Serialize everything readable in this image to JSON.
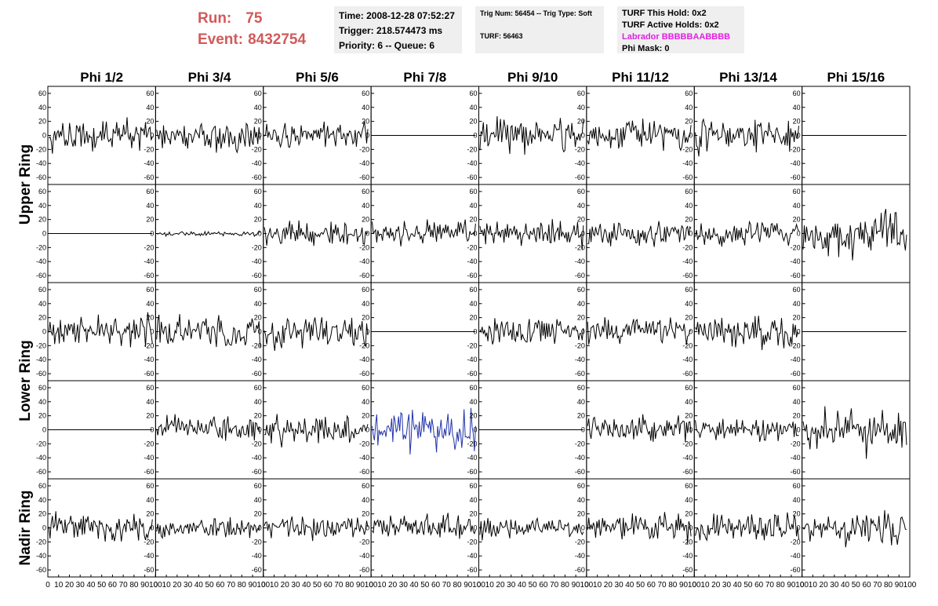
{
  "header": {
    "run_label": "Run:",
    "run_value": "75",
    "event_label": "Event:",
    "event_value": "8432754",
    "time": "Time: 2008-12-28 07:52:27",
    "trigger": "Trigger: 218.574473 ms",
    "priority": "Priority: 6 -- Queue: 6",
    "trig": "Trig Num: 56454 -- Trig Type: Soft",
    "turf": "TURF: 56463",
    "turf_hold": "TURF This Hold: 0x2",
    "turf_active": "TURF Active Holds: 0x2",
    "labrador": "Labrador BBBBBAABBBB",
    "phi_mask": "Phi Mask: 0",
    "labrador_color": "#e020e0",
    "run_color": "#d15a5a"
  },
  "chart_data": {
    "type": "line",
    "columns": [
      "Phi 1/2",
      "Phi 3/4",
      "Phi 5/6",
      "Phi 7/8",
      "Phi 9/10",
      "Phi 11/12",
      "Phi 13/14",
      "Phi 15/16"
    ],
    "row_labels": [
      "Upper Ring",
      "Lower Ring",
      "Nadir Ring"
    ],
    "y_ticks": [
      60,
      40,
      20,
      0,
      -20,
      -40,
      -60
    ],
    "x_ticks": [
      0,
      10,
      20,
      30,
      40,
      50,
      60,
      70,
      80,
      90,
      100
    ],
    "ylim": [
      -70,
      70
    ],
    "xlim": [
      0,
      100
    ],
    "samples": 90,
    "panels": [
      [
        {
          "amp": 14,
          "seed": 11
        },
        {
          "amp": 13,
          "seed": 12
        },
        {
          "amp": 12,
          "seed": 13
        },
        {
          "amp": 0,
          "seed": 14
        },
        {
          "amp": 14,
          "seed": 15
        },
        {
          "amp": 12,
          "seed": 16
        },
        {
          "amp": 16,
          "seed": 17
        },
        {
          "amp": 0,
          "seed": 18
        }
      ],
      [
        {
          "amp": 0,
          "seed": 21
        },
        {
          "amp": 2,
          "seed": 22
        },
        {
          "amp": 11,
          "seed": 23
        },
        {
          "amp": 10,
          "seed": 24
        },
        {
          "amp": 11,
          "seed": 25
        },
        {
          "amp": 11,
          "seed": 26
        },
        {
          "amp": 11,
          "seed": 27
        },
        {
          "amp": 20,
          "seed": 28
        }
      ],
      [
        {
          "amp": 14,
          "seed": 31
        },
        {
          "amp": 14,
          "seed": 32
        },
        {
          "amp": 14,
          "seed": 33
        },
        {
          "amp": 0,
          "seed": 34
        },
        {
          "amp": 10,
          "seed": 35
        },
        {
          "amp": 12,
          "seed": 36
        },
        {
          "amp": 13,
          "seed": 37
        },
        {
          "amp": 0,
          "seed": 38
        }
      ],
      [
        {
          "amp": 0,
          "seed": 41
        },
        {
          "amp": 11,
          "seed": 42
        },
        {
          "amp": 12,
          "seed": 43
        },
        {
          "amp": 18,
          "seed": 44,
          "color": "#2233aa"
        },
        {
          "amp": 0,
          "seed": 45
        },
        {
          "amp": 11,
          "seed": 46
        },
        {
          "amp": 10,
          "seed": 47
        },
        {
          "amp": 18,
          "seed": 48
        }
      ],
      [
        {
          "amp": 14,
          "seed": 51
        },
        {
          "amp": 9,
          "seed": 52
        },
        {
          "amp": 10,
          "seed": 53
        },
        {
          "amp": 10,
          "seed": 54
        },
        {
          "amp": 9,
          "seed": 55
        },
        {
          "amp": 12,
          "seed": 56
        },
        {
          "amp": 12,
          "seed": 57
        },
        {
          "amp": 14,
          "seed": 58
        }
      ]
    ]
  }
}
